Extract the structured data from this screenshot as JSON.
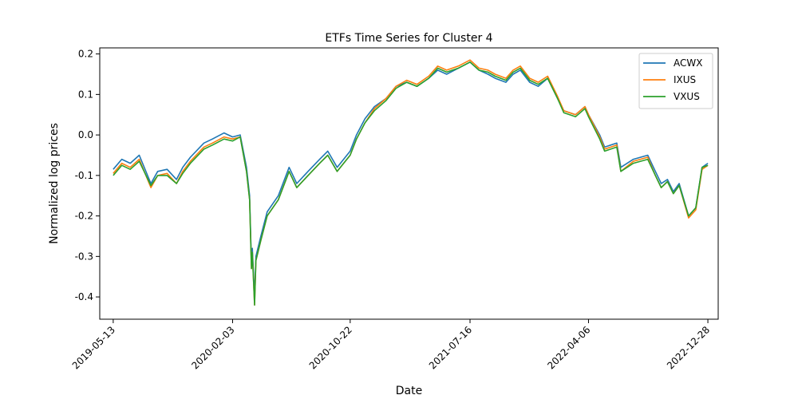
{
  "chart_data": {
    "type": "line",
    "title": "ETFs Time Series for Cluster 4",
    "xlabel": "Date",
    "ylabel": "Normalized log prices",
    "x_tick_labels": [
      "2019-05-13",
      "2020-02-03",
      "2020-10-22",
      "2021-07-16",
      "2022-04-06",
      "2022-12-28"
    ],
    "y_tick_labels": [
      "0.2",
      "0.1",
      "0.0",
      "-0.1",
      "-0.2",
      "-0.3",
      "-0.4"
    ],
    "y_tick_values": [
      0.2,
      0.1,
      0.0,
      -0.1,
      -0.2,
      -0.3,
      -0.4
    ],
    "xlim": [
      "2019-04-13",
      "2023-01-20"
    ],
    "ylim": [
      -0.455,
      0.215
    ],
    "grid": false,
    "legend_position": "top-right",
    "series": [
      {
        "name": "ACWX",
        "color": "#1f77b4",
        "x": [
          "2019-05-13",
          "2019-06-01",
          "2019-06-20",
          "2019-07-10",
          "2019-08-05",
          "2019-08-20",
          "2019-09-10",
          "2019-10-01",
          "2019-10-15",
          "2019-11-01",
          "2019-12-01",
          "2019-12-20",
          "2020-01-15",
          "2020-02-03",
          "2020-02-20",
          "2020-03-05",
          "2020-03-12",
          "2020-03-16",
          "2020-03-18",
          "2020-03-23",
          "2020-03-26",
          "2020-04-06",
          "2020-04-20",
          "2020-05-15",
          "2020-06-08",
          "2020-06-25",
          "2020-07-20",
          "2020-08-15",
          "2020-09-02",
          "2020-09-23",
          "2020-10-22",
          "2020-11-05",
          "2020-11-24",
          "2020-12-15",
          "2021-01-10",
          "2021-02-01",
          "2021-02-25",
          "2021-03-20",
          "2021-04-15",
          "2021-05-05",
          "2021-05-25",
          "2021-06-20",
          "2021-07-16",
          "2021-08-05",
          "2021-08-25",
          "2021-09-10",
          "2021-10-04",
          "2021-10-20",
          "2021-11-05",
          "2021-11-26",
          "2021-12-15",
          "2022-01-05",
          "2022-01-27",
          "2022-02-10",
          "2022-03-08",
          "2022-03-29",
          "2022-04-06",
          "2022-05-01",
          "2022-05-12",
          "2022-06-08",
          "2022-06-17",
          "2022-07-15",
          "2022-08-16",
          "2022-09-02",
          "2022-09-15",
          "2022-09-29",
          "2022-10-12",
          "2022-10-25",
          "2022-11-15",
          "2022-12-01",
          "2022-12-15",
          "2022-12-28"
        ],
        "values": [
          -0.085,
          -0.06,
          -0.07,
          -0.05,
          -0.12,
          -0.09,
          -0.085,
          -0.11,
          -0.08,
          -0.055,
          -0.02,
          -0.01,
          0.005,
          -0.005,
          0.0,
          -0.08,
          -0.15,
          -0.32,
          -0.28,
          -0.4,
          -0.3,
          -0.25,
          -0.19,
          -0.15,
          -0.08,
          -0.12,
          -0.09,
          -0.06,
          -0.04,
          -0.08,
          -0.04,
          0.0,
          0.04,
          0.07,
          0.09,
          0.12,
          0.13,
          0.12,
          0.14,
          0.16,
          0.15,
          0.165,
          0.18,
          0.16,
          0.15,
          0.14,
          0.13,
          0.15,
          0.16,
          0.13,
          0.12,
          0.14,
          0.09,
          0.06,
          0.05,
          0.07,
          0.05,
          0.0,
          -0.03,
          -0.02,
          -0.08,
          -0.06,
          -0.05,
          -0.09,
          -0.12,
          -0.11,
          -0.14,
          -0.12,
          -0.2,
          -0.18,
          -0.08,
          -0.07
        ]
      },
      {
        "name": "IXUS",
        "color": "#ff7f0e",
        "x": [
          "2019-05-13",
          "2019-06-01",
          "2019-06-20",
          "2019-07-10",
          "2019-08-05",
          "2019-08-20",
          "2019-09-10",
          "2019-10-01",
          "2019-10-15",
          "2019-11-01",
          "2019-12-01",
          "2019-12-20",
          "2020-01-15",
          "2020-02-03",
          "2020-02-20",
          "2020-03-05",
          "2020-03-12",
          "2020-03-16",
          "2020-03-18",
          "2020-03-23",
          "2020-03-26",
          "2020-04-06",
          "2020-04-20",
          "2020-05-15",
          "2020-06-08",
          "2020-06-25",
          "2020-07-20",
          "2020-08-15",
          "2020-09-02",
          "2020-09-23",
          "2020-10-22",
          "2020-11-05",
          "2020-11-24",
          "2020-12-15",
          "2021-01-10",
          "2021-02-01",
          "2021-02-25",
          "2021-03-20",
          "2021-04-15",
          "2021-05-05",
          "2021-05-25",
          "2021-06-20",
          "2021-07-16",
          "2021-08-05",
          "2021-08-25",
          "2021-09-10",
          "2021-10-04",
          "2021-10-20",
          "2021-11-05",
          "2021-11-26",
          "2021-12-15",
          "2022-01-05",
          "2022-01-27",
          "2022-02-10",
          "2022-03-08",
          "2022-03-29",
          "2022-04-06",
          "2022-05-01",
          "2022-05-12",
          "2022-06-08",
          "2022-06-17",
          "2022-07-15",
          "2022-08-16",
          "2022-09-02",
          "2022-09-15",
          "2022-09-29",
          "2022-10-12",
          "2022-10-25",
          "2022-11-15",
          "2022-12-01",
          "2022-12-15",
          "2022-12-28"
        ],
        "values": [
          -0.095,
          -0.07,
          -0.08,
          -0.06,
          -0.13,
          -0.1,
          -0.095,
          -0.12,
          -0.09,
          -0.065,
          -0.03,
          -0.02,
          -0.005,
          -0.01,
          -0.005,
          -0.09,
          -0.16,
          -0.33,
          -0.29,
          -0.42,
          -0.31,
          -0.26,
          -0.2,
          -0.16,
          -0.09,
          -0.13,
          -0.1,
          -0.07,
          -0.05,
          -0.09,
          -0.05,
          -0.01,
          0.03,
          0.065,
          0.09,
          0.12,
          0.135,
          0.125,
          0.145,
          0.17,
          0.16,
          0.17,
          0.185,
          0.165,
          0.16,
          0.15,
          0.14,
          0.16,
          0.17,
          0.14,
          0.13,
          0.145,
          0.095,
          0.06,
          0.05,
          0.07,
          0.05,
          -0.005,
          -0.035,
          -0.025,
          -0.09,
          -0.065,
          -0.055,
          -0.1,
          -0.13,
          -0.115,
          -0.145,
          -0.125,
          -0.205,
          -0.185,
          -0.085,
          -0.075
        ]
      },
      {
        "name": "VXUS",
        "color": "#2ca02c",
        "x": [
          "2019-05-13",
          "2019-06-01",
          "2019-06-20",
          "2019-07-10",
          "2019-08-05",
          "2019-08-20",
          "2019-09-10",
          "2019-10-01",
          "2019-10-15",
          "2019-11-01",
          "2019-12-01",
          "2019-12-20",
          "2020-01-15",
          "2020-02-03",
          "2020-02-20",
          "2020-03-05",
          "2020-03-12",
          "2020-03-16",
          "2020-03-18",
          "2020-03-23",
          "2020-03-26",
          "2020-04-06",
          "2020-04-20",
          "2020-05-15",
          "2020-06-08",
          "2020-06-25",
          "2020-07-20",
          "2020-08-15",
          "2020-09-02",
          "2020-09-23",
          "2020-10-22",
          "2020-11-05",
          "2020-11-24",
          "2020-12-15",
          "2021-01-10",
          "2021-02-01",
          "2021-02-25",
          "2021-03-20",
          "2021-04-15",
          "2021-05-05",
          "2021-05-25",
          "2021-06-20",
          "2021-07-16",
          "2021-08-05",
          "2021-08-25",
          "2021-09-10",
          "2021-10-04",
          "2021-10-20",
          "2021-11-05",
          "2021-11-26",
          "2021-12-15",
          "2022-01-05",
          "2022-01-27",
          "2022-02-10",
          "2022-03-08",
          "2022-03-29",
          "2022-04-06",
          "2022-05-01",
          "2022-05-12",
          "2022-06-08",
          "2022-06-17",
          "2022-07-15",
          "2022-08-16",
          "2022-09-02",
          "2022-09-15",
          "2022-09-29",
          "2022-10-12",
          "2022-10-25",
          "2022-11-15",
          "2022-12-01",
          "2022-12-15",
          "2022-12-28"
        ],
        "values": [
          -0.1,
          -0.075,
          -0.085,
          -0.065,
          -0.125,
          -0.1,
          -0.1,
          -0.12,
          -0.095,
          -0.07,
          -0.035,
          -0.025,
          -0.01,
          -0.015,
          -0.005,
          -0.09,
          -0.16,
          -0.33,
          -0.29,
          -0.42,
          -0.31,
          -0.26,
          -0.2,
          -0.16,
          -0.09,
          -0.13,
          -0.1,
          -0.07,
          -0.05,
          -0.09,
          -0.05,
          -0.01,
          0.03,
          0.06,
          0.085,
          0.115,
          0.13,
          0.12,
          0.14,
          0.165,
          0.155,
          0.165,
          0.18,
          0.16,
          0.155,
          0.145,
          0.135,
          0.155,
          0.165,
          0.135,
          0.125,
          0.14,
          0.09,
          0.055,
          0.045,
          0.065,
          0.045,
          -0.01,
          -0.04,
          -0.03,
          -0.09,
          -0.07,
          -0.06,
          -0.1,
          -0.13,
          -0.115,
          -0.145,
          -0.125,
          -0.2,
          -0.18,
          -0.08,
          -0.075
        ]
      }
    ]
  }
}
